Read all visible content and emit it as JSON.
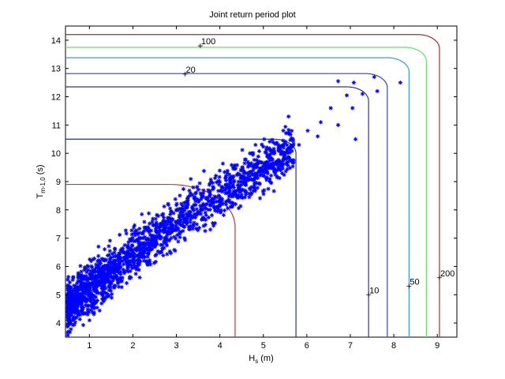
{
  "chart_data": {
    "type": "scatter",
    "title": "Joint return period plot",
    "xlabel": {
      "main": "H",
      "sub": "s",
      "suffix": " (m)"
    },
    "ylabel": {
      "main": "T",
      "sub": "m-1,0",
      "suffix": " (s)"
    },
    "xlim": [
      0.45,
      9.45
    ],
    "ylim": [
      3.5,
      14.5
    ],
    "xticks": [
      1,
      2,
      3,
      4,
      5,
      6,
      7,
      8,
      9
    ],
    "yticks": [
      4,
      5,
      6,
      7,
      8,
      9,
      10,
      11,
      12,
      13,
      14
    ],
    "grid": false,
    "scatter_series": {
      "marker": "*",
      "color": "#0000ff",
      "points": [
        [
          6.72,
          12.55
        ],
        [
          7.08,
          12.5
        ],
        [
          7.55,
          12.7
        ],
        [
          8.15,
          12.5
        ],
        [
          6.92,
          12.05
        ],
        [
          7.28,
          12.1
        ],
        [
          7.62,
          12.2
        ],
        [
          6.55,
          11.6
        ],
        [
          7.05,
          11.6
        ],
        [
          6.72,
          11.0
        ],
        [
          7.12,
          10.5
        ],
        [
          5.58,
          11.3
        ],
        [
          6.32,
          11.1
        ],
        [
          5.02,
          10.5
        ],
        [
          6.25,
          10.6
        ],
        [
          5.82,
          10.3
        ],
        [
          4.82,
          10.3
        ],
        [
          6.02,
          10.8
        ]
      ]
    },
    "contours": [
      {
        "label": "100",
        "color": "#993333",
        "xmax": 9.05,
        "ymax": 14.2,
        "corner": 0.5
      },
      {
        "label": "200",
        "color": "#66dd66",
        "xmax": 8.75,
        "ymax": 13.75,
        "corner": 0.5
      },
      {
        "label": "50",
        "color": "#3399ee",
        "xmax": 8.35,
        "ymax": 13.38,
        "corner": 0.5
      },
      {
        "label": "20",
        "color": "#3344bb",
        "xmax": 7.85,
        "ymax": 12.82,
        "corner": 0.5
      },
      {
        "label": "10",
        "color": "#333399",
        "xmax": 7.42,
        "ymax": 12.35,
        "corner": 0.5
      },
      {
        "label": "",
        "color": "#223388",
        "xmax": 5.75,
        "ymax": 10.5,
        "corner": 0.5
      },
      {
        "label": "",
        "color": "#cc3333",
        "xmax": 4.35,
        "ymax": 8.9,
        "corner": 1.5
      }
    ],
    "annotations": [
      {
        "text": "100",
        "x": 3.55,
        "y": 13.8
      },
      {
        "text": "20",
        "x": 3.2,
        "y": 12.8
      },
      {
        "text": "10",
        "x": 7.42,
        "y": 5.0
      },
      {
        "text": "50",
        "x": 8.35,
        "y": 5.3
      },
      {
        "text": "200",
        "x": 9.05,
        "y": 5.6
      }
    ]
  }
}
